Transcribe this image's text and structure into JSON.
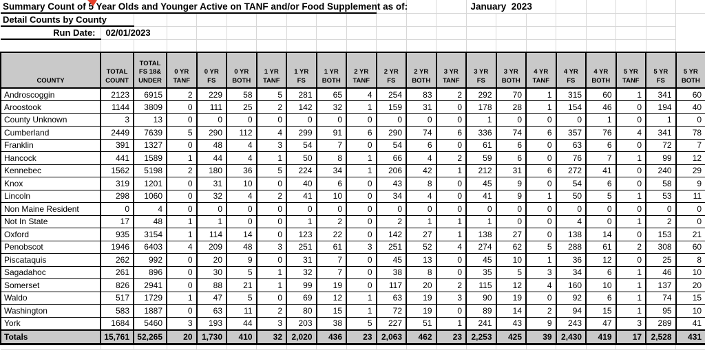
{
  "colors": {
    "header_fill": "#c9c9c9",
    "totals_fill": "#c9c9c9",
    "table_border": "#000000",
    "faint_grid": "#d8d8d8",
    "comment_flag": "#e5402a"
  },
  "titles": {
    "main": "Summary Count of 5 Year Olds and Younger Active on TANF and/or Food Supplement as of:",
    "period": "January  2023",
    "subtitle": "Detail Counts by County",
    "run_date_label": "Run Date:",
    "run_date_value": "02/01/2023"
  },
  "table": {
    "columns": [
      "COUNTY",
      "TOTAL\nCOUNT",
      "TOTAL\nFS 18&\nUNDER",
      "0 YR\nTANF",
      "0 YR\nFS",
      "0 YR\nBOTH",
      "1 YR\nTANF",
      "1 YR\nFS",
      "1 YR\nBOTH",
      "2 YR\nTANF",
      "2 YR\nFS",
      "2 YR\nBOTH",
      "3 YR\nTANF",
      "3 YR\nFS",
      "3 YR\nBOTH",
      "4 YR\nTANF",
      "4 YR\nFS",
      "4 YR\nBOTH",
      "5 YR\nTANF",
      "5 YR\nFS",
      "5 YR\nBOTH"
    ],
    "rows": [
      {
        "county": "Androscoggin",
        "values": [
          "2123",
          "6915",
          "2",
          "229",
          "58",
          "5",
          "281",
          "65",
          "4",
          "254",
          "83",
          "2",
          "292",
          "70",
          "1",
          "315",
          "60",
          "1",
          "341",
          "60"
        ]
      },
      {
        "county": "Aroostook",
        "values": [
          "1144",
          "3809",
          "0",
          "111",
          "25",
          "2",
          "142",
          "32",
          "1",
          "159",
          "31",
          "0",
          "178",
          "28",
          "1",
          "154",
          "46",
          "0",
          "194",
          "40"
        ]
      },
      {
        "county": "County Unknown",
        "values": [
          "3",
          "13",
          "0",
          "0",
          "0",
          "0",
          "0",
          "0",
          "0",
          "0",
          "0",
          "0",
          "1",
          "0",
          "0",
          "0",
          "1",
          "0",
          "1",
          "0"
        ]
      },
      {
        "county": "Cumberland",
        "values": [
          "2449",
          "7639",
          "5",
          "290",
          "112",
          "4",
          "299",
          "91",
          "6",
          "290",
          "74",
          "6",
          "336",
          "74",
          "6",
          "357",
          "76",
          "4",
          "341",
          "78"
        ]
      },
      {
        "county": "Franklin",
        "values": [
          "391",
          "1327",
          "0",
          "48",
          "4",
          "3",
          "54",
          "7",
          "0",
          "54",
          "6",
          "0",
          "61",
          "6",
          "0",
          "63",
          "6",
          "0",
          "72",
          "7"
        ]
      },
      {
        "county": "Hancock",
        "values": [
          "441",
          "1589",
          "1",
          "44",
          "4",
          "1",
          "50",
          "8",
          "1",
          "66",
          "4",
          "2",
          "59",
          "6",
          "0",
          "76",
          "7",
          "1",
          "99",
          "12"
        ]
      },
      {
        "county": "Kennebec",
        "values": [
          "1562",
          "5198",
          "2",
          "180",
          "36",
          "5",
          "224",
          "34",
          "1",
          "206",
          "42",
          "1",
          "212",
          "31",
          "6",
          "272",
          "41",
          "0",
          "240",
          "29"
        ]
      },
      {
        "county": "Knox",
        "values": [
          "319",
          "1201",
          "0",
          "31",
          "10",
          "0",
          "40",
          "6",
          "0",
          "43",
          "8",
          "0",
          "45",
          "9",
          "0",
          "54",
          "6",
          "0",
          "58",
          "9"
        ]
      },
      {
        "county": "Lincoln",
        "values": [
          "298",
          "1060",
          "0",
          "32",
          "4",
          "2",
          "41",
          "10",
          "0",
          "34",
          "4",
          "0",
          "41",
          "9",
          "1",
          "50",
          "5",
          "1",
          "53",
          "11"
        ]
      },
      {
        "county": "Non Maine Resident",
        "values": [
          "0",
          "4",
          "0",
          "0",
          "0",
          "0",
          "0",
          "0",
          "0",
          "0",
          "0",
          "0",
          "0",
          "0",
          "0",
          "0",
          "0",
          "0",
          "0",
          "0"
        ]
      },
      {
        "county": "Not In State",
        "values": [
          "17",
          "48",
          "1",
          "1",
          "0",
          "0",
          "1",
          "2",
          "0",
          "2",
          "1",
          "1",
          "1",
          "0",
          "0",
          "4",
          "0",
          "1",
          "2",
          "0"
        ]
      },
      {
        "county": "Oxford",
        "values": [
          "935",
          "3154",
          "1",
          "114",
          "14",
          "0",
          "123",
          "22",
          "0",
          "142",
          "27",
          "1",
          "138",
          "27",
          "0",
          "138",
          "14",
          "0",
          "153",
          "21"
        ]
      },
      {
        "county": "Penobscot",
        "values": [
          "1946",
          "6403",
          "4",
          "209",
          "48",
          "3",
          "251",
          "61",
          "3",
          "251",
          "52",
          "4",
          "274",
          "62",
          "5",
          "288",
          "61",
          "2",
          "308",
          "60"
        ]
      },
      {
        "county": "Piscataquis",
        "values": [
          "262",
          "992",
          "0",
          "20",
          "9",
          "0",
          "31",
          "7",
          "0",
          "45",
          "13",
          "0",
          "45",
          "10",
          "1",
          "36",
          "12",
          "0",
          "25",
          "8"
        ]
      },
      {
        "county": "Sagadahoc",
        "values": [
          "261",
          "896",
          "0",
          "30",
          "5",
          "1",
          "32",
          "7",
          "0",
          "38",
          "8",
          "0",
          "35",
          "5",
          "3",
          "34",
          "6",
          "1",
          "46",
          "10"
        ]
      },
      {
        "county": "Somerset",
        "values": [
          "826",
          "2941",
          "0",
          "88",
          "21",
          "1",
          "99",
          "19",
          "0",
          "117",
          "20",
          "2",
          "115",
          "12",
          "4",
          "160",
          "10",
          "1",
          "137",
          "20"
        ]
      },
      {
        "county": "Waldo",
        "values": [
          "517",
          "1729",
          "1",
          "47",
          "5",
          "0",
          "69",
          "12",
          "1",
          "63",
          "19",
          "3",
          "90",
          "19",
          "0",
          "92",
          "6",
          "1",
          "74",
          "15"
        ]
      },
      {
        "county": "Washington",
        "values": [
          "583",
          "1887",
          "0",
          "63",
          "11",
          "2",
          "80",
          "15",
          "1",
          "72",
          "19",
          "0",
          "89",
          "14",
          "2",
          "94",
          "15",
          "1",
          "95",
          "10"
        ]
      },
      {
        "county": "York",
        "values": [
          "1684",
          "5460",
          "3",
          "193",
          "44",
          "3",
          "203",
          "38",
          "5",
          "227",
          "51",
          "1",
          "241",
          "43",
          "9",
          "243",
          "47",
          "3",
          "289",
          "41"
        ]
      }
    ],
    "totals": {
      "label": "Totals",
      "values": [
        "15,761",
        "52,265",
        "20",
        "1,730",
        "410",
        "32",
        "2,020",
        "436",
        "23",
        "2,063",
        "462",
        "23",
        "2,253",
        "425",
        "39",
        "2,430",
        "419",
        "17",
        "2,528",
        "431"
      ]
    }
  }
}
